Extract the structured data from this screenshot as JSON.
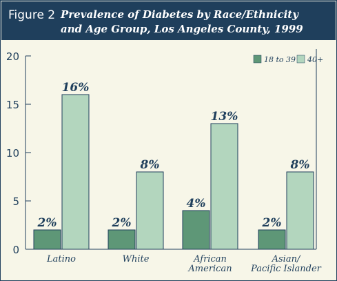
{
  "figure": {
    "number": "Figure 2",
    "title_line1": "Prevalence of Diabetes by Race/Ethnicity",
    "title_line2": "and Age Group, Los Angeles County, 1999"
  },
  "colors": {
    "title_bg": "#1f3f5c",
    "plot_bg": "#f7f6e8",
    "series_18_39": "#5e9777",
    "series_40_plus": "#b3d6be",
    "axis": "#1f3f5c",
    "label_text": "#1f3f5c"
  },
  "chart_data": {
    "type": "bar",
    "title": "Prevalence of Diabetes by Race/Ethnicity and Age Group, Los Angeles County, 1999",
    "categories": [
      "Latino",
      "White",
      "African American",
      "Asian/ Pacific Islander"
    ],
    "category_lines": [
      [
        "Latino"
      ],
      [
        "White"
      ],
      [
        "African",
        "American"
      ],
      [
        "Asian/",
        "Pacific Islander"
      ]
    ],
    "series": [
      {
        "name": "18 to 39",
        "values": [
          2,
          2,
          4,
          2
        ],
        "labels": [
          "2%",
          "2%",
          "4%",
          "2%"
        ],
        "color": "#5e9777"
      },
      {
        "name": "40+",
        "values": [
          16,
          8,
          13,
          8
        ],
        "labels": [
          "16%",
          "8%",
          "13%",
          "8%"
        ],
        "color": "#b3d6be"
      }
    ],
    "ylim": [
      0,
      20
    ],
    "yticks": [
      0,
      5,
      10,
      15,
      20
    ],
    "xlabel": "",
    "ylabel": "",
    "legend_position": "top-right",
    "grid": false
  }
}
